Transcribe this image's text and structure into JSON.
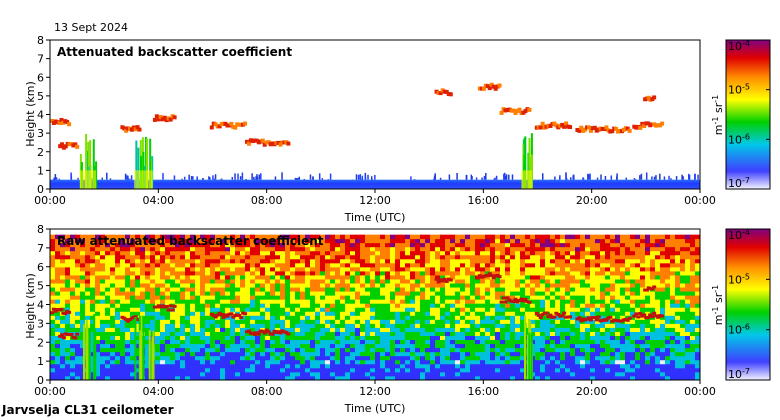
{
  "header": {
    "date": "13 Sept 2024"
  },
  "footer": {
    "station": "Jarvselja CL31 ceilometer"
  },
  "chart_data": [
    {
      "type": "heatmap",
      "title": "Attenuated backscatter coefficient",
      "xlabel": "Time (UTC)",
      "ylabel": "Height (km)",
      "xlim": [
        0,
        24
      ],
      "ylim": [
        0,
        8
      ],
      "x_ticks": [
        "00:00",
        "04:00",
        "08:00",
        "12:00",
        "16:00",
        "20:00",
        "00:00"
      ],
      "y_ticks": [
        "0",
        "1",
        "2",
        "3",
        "4",
        "5",
        "6",
        "7",
        "8"
      ],
      "colorbar": {
        "min_exp": -7,
        "max_exp": -4,
        "ticks": [
          "10^-7",
          "10^-6",
          "10^-5",
          "10^-4"
        ],
        "unit": "m-1 sr-1"
      },
      "features": {
        "boundary_layer_top_km": 0.5,
        "precipitation_hours": [
          [
            1.1,
            1.7
          ],
          [
            3.1,
            3.8
          ],
          [
            17.4,
            17.8
          ]
        ],
        "cloud_layers": [
          {
            "from_h": 0.0,
            "to_h": 0.7,
            "height_km": 3.6
          },
          {
            "from_h": 0.3,
            "to_h": 1.0,
            "height_km": 2.3
          },
          {
            "from_h": 2.6,
            "to_h": 3.3,
            "height_km": 3.2
          },
          {
            "from_h": 3.8,
            "to_h": 4.6,
            "height_km": 3.8
          },
          {
            "from_h": 5.9,
            "to_h": 7.2,
            "height_km": 3.4
          },
          {
            "from_h": 7.2,
            "to_h": 8.8,
            "height_km": 2.5
          },
          {
            "from_h": 14.2,
            "to_h": 14.8,
            "height_km": 5.2
          },
          {
            "from_h": 15.8,
            "to_h": 16.6,
            "height_km": 5.5
          },
          {
            "from_h": 16.6,
            "to_h": 17.7,
            "height_km": 4.2
          },
          {
            "from_h": 17.9,
            "to_h": 19.2,
            "height_km": 3.4
          },
          {
            "from_h": 19.4,
            "to_h": 21.4,
            "height_km": 3.2
          },
          {
            "from_h": 21.5,
            "to_h": 22.6,
            "height_km": 3.4
          },
          {
            "from_h": 21.9,
            "to_h": 22.3,
            "height_km": 4.8
          }
        ]
      }
    },
    {
      "type": "heatmap",
      "title": "Raw attenuated backscatter coefficient",
      "xlabel": "Time (UTC)",
      "ylabel": "Height (km)",
      "xlim": [
        0,
        24
      ],
      "ylim": [
        0,
        8
      ],
      "x_ticks": [
        "00:00",
        "04:00",
        "08:00",
        "12:00",
        "16:00",
        "20:00",
        "00:00"
      ],
      "y_ticks": [
        "0",
        "1",
        "2",
        "3",
        "4",
        "5",
        "6",
        "7",
        "8"
      ],
      "colorbar": {
        "min_exp": -7,
        "max_exp": -4,
        "ticks": [
          "10^-7",
          "10^-6",
          "10^-5",
          "10^-4"
        ],
        "unit": "m-1 sr-1"
      },
      "features": {
        "noise_increases_with_height": true,
        "top_of_data_km": 7.7,
        "precipitation_hours": [
          [
            1.1,
            1.7
          ],
          [
            3.1,
            3.8
          ],
          [
            17.4,
            17.8
          ]
        ]
      }
    }
  ],
  "colors": {
    "scale": [
      "#f0f0ff",
      "#3030ff",
      "#00c0e0",
      "#00d000",
      "#ffff00",
      "#ff8000",
      "#e00000",
      "#800080"
    ]
  }
}
